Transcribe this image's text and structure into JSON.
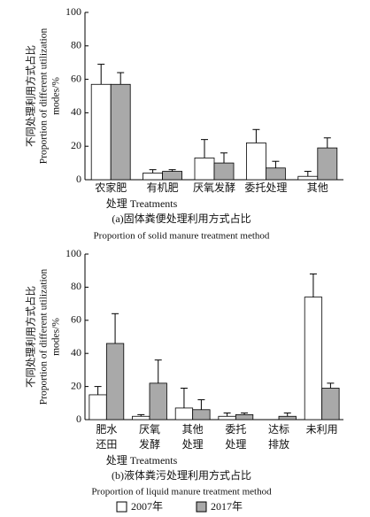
{
  "chart_data": [
    {
      "type": "bar",
      "ylabel": [
        "不同处理利用方式占比",
        "Proportion of different utilization",
        "modes/%"
      ],
      "xlabel": "处理 Treatments",
      "caption": "(a)固体粪便处理利用方式占比",
      "caption_en": "Proportion of solid manure  treatment method",
      "categories": [
        [
          "农家肥"
        ],
        [
          "有机肥"
        ],
        [
          "厌氧发酵"
        ],
        [
          "委托处理"
        ],
        [
          "其他"
        ]
      ],
      "series": [
        {
          "color": "#ffffff",
          "values": [
            57,
            4,
            13,
            22,
            2
          ],
          "errors": [
            12,
            2,
            11,
            8,
            3
          ]
        },
        {
          "color": "#a9a9a9",
          "values": [
            57,
            5,
            10,
            7,
            19
          ],
          "errors": [
            7,
            1,
            6,
            4,
            6
          ]
        }
      ],
      "ylim": [
        0,
        100
      ],
      "yticks": [
        0,
        20,
        40,
        60,
        80,
        100
      ]
    },
    {
      "type": "bar",
      "ylabel": [
        "不同处理利用方式占比",
        "Proportion of different utilization",
        "modes/%"
      ],
      "xlabel": "处理 Treatments",
      "caption": "(b)液体粪污处理利用方式占比",
      "caption_en": "Proportion of liquid manure treatment method",
      "categories": [
        [
          "肥水",
          "还田"
        ],
        [
          "厌氧",
          "发酵"
        ],
        [
          "其他",
          "处理"
        ],
        [
          "委托",
          "处理"
        ],
        [
          "达标",
          "排放"
        ],
        [
          "未利用"
        ]
      ],
      "series": [
        {
          "name": "2007年",
          "color": "#ffffff",
          "values": [
            15,
            2,
            7,
            2,
            0,
            74
          ],
          "errors": [
            5,
            1,
            12,
            2,
            0,
            14
          ]
        },
        {
          "name": "2017年",
          "color": "#a9a9a9",
          "values": [
            46,
            22,
            6,
            3,
            2,
            19
          ],
          "errors": [
            18,
            14,
            6,
            1,
            2,
            3
          ]
        }
      ],
      "ylim": [
        0,
        100
      ],
      "yticks": [
        0,
        20,
        40,
        60,
        80,
        100
      ]
    }
  ]
}
